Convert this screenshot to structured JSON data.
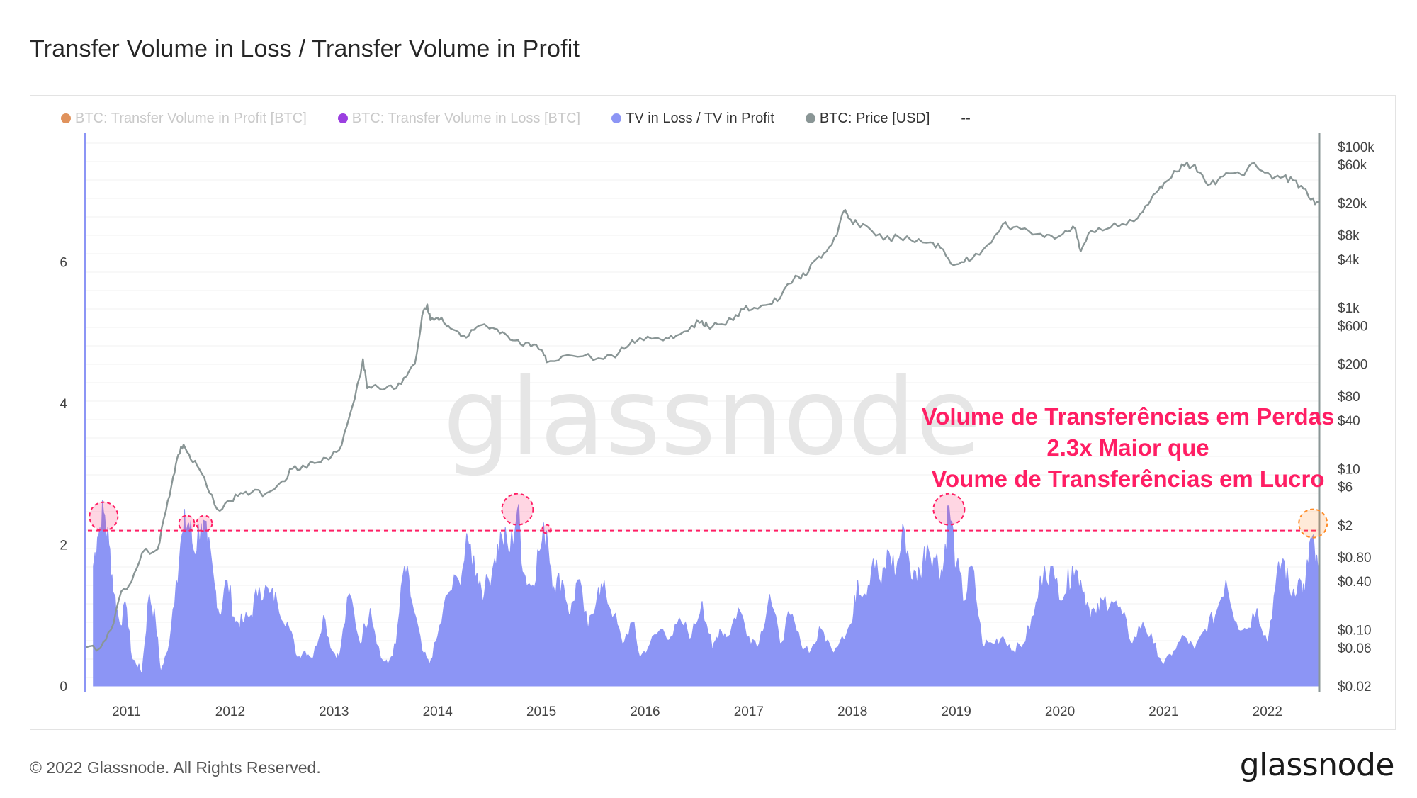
{
  "page_title": "Transfer Volume in Loss / Transfer Volume in Profit",
  "legend": [
    {
      "label": "BTC: Transfer Volume in Profit [BTC]",
      "color": "#e0925c",
      "muted": true
    },
    {
      "label": "BTC: Transfer Volume in Loss [BTC]",
      "color": "#9b3fe0",
      "muted": true
    },
    {
      "label": "TV in Loss / TV in Profit",
      "color": "#8c95f5",
      "muted": false
    },
    {
      "label": "BTC: Price [USD]",
      "color": "#8a9696",
      "muted": false
    },
    {
      "label": "--",
      "color": "",
      "muted": false
    }
  ],
  "watermark": "glassnode",
  "annotation": {
    "lines": [
      "Volume de Transferências em Perdas",
      "2.3x Maior que",
      "Voume de Transferências em Lucro"
    ],
    "color": "#ff1e64"
  },
  "footer": {
    "copyright": "© 2022 Glassnode. All Rights Reserved.",
    "logo": "glassnode"
  },
  "colors": {
    "ratio_fill": "#8c95f5",
    "price_line": "#8a9696",
    "highlight": "#ff1e64",
    "highlight_last": "#ff8c28"
  },
  "chart_data": {
    "type": "area",
    "x_range": [
      2010.6,
      2022.5
    ],
    "x_ticks": [
      {
        "value": 2011,
        "label": "2011"
      },
      {
        "value": 2012,
        "label": "2012"
      },
      {
        "value": 2013,
        "label": "2013"
      },
      {
        "value": 2014,
        "label": "2014"
      },
      {
        "value": 2015,
        "label": "2015"
      },
      {
        "value": 2016,
        "label": "2016"
      },
      {
        "value": 2017,
        "label": "2017"
      },
      {
        "value": 2018,
        "label": "2018"
      },
      {
        "value": 2019,
        "label": "2019"
      },
      {
        "value": 2020,
        "label": "2020"
      },
      {
        "value": 2021,
        "label": "2021"
      },
      {
        "value": 2022,
        "label": "2022"
      }
    ],
    "y_left": {
      "range": [
        0,
        7.8
      ],
      "ticks": [
        {
          "value": 0,
          "label": "0"
        },
        {
          "value": 2,
          "label": "2"
        },
        {
          "value": 4,
          "label": "4"
        },
        {
          "value": 6,
          "label": "6"
        }
      ]
    },
    "y_right": {
      "scale": "log",
      "range": [
        0.02,
        100000
      ],
      "ticks": [
        {
          "value": 100000,
          "label": "$100k"
        },
        {
          "value": 60000,
          "label": "$60k"
        },
        {
          "value": 20000,
          "label": "$20k"
        },
        {
          "value": 8000,
          "label": "$8k"
        },
        {
          "value": 4000,
          "label": "$4k"
        },
        {
          "value": 1000,
          "label": "$1k"
        },
        {
          "value": 600,
          "label": "$600"
        },
        {
          "value": 200,
          "label": "$200"
        },
        {
          "value": 80,
          "label": "$80"
        },
        {
          "value": 40,
          "label": "$40"
        },
        {
          "value": 10,
          "label": "$10"
        },
        {
          "value": 6,
          "label": "$6"
        },
        {
          "value": 2,
          "label": "$2"
        },
        {
          "value": 0.8,
          "label": "$0.80"
        },
        {
          "value": 0.4,
          "label": "$0.40"
        },
        {
          "value": 0.1,
          "label": "$0.10"
        },
        {
          "value": 0.06,
          "label": "$0.06"
        },
        {
          "value": 0.02,
          "label": "$0.02"
        }
      ]
    },
    "threshold": 2.2,
    "highlighted_peaks": [
      {
        "x": 2010.78,
        "y": 2.4,
        "size": "medium"
      },
      {
        "x": 2011.58,
        "y": 2.3,
        "size": "small"
      },
      {
        "x": 2011.75,
        "y": 2.3,
        "size": "small"
      },
      {
        "x": 2014.77,
        "y": 2.5,
        "size": "large"
      },
      {
        "x": 2015.05,
        "y": 2.22,
        "size": "tiny"
      },
      {
        "x": 2018.93,
        "y": 2.5,
        "size": "large"
      },
      {
        "x": 2022.44,
        "y": 2.3,
        "size": "medium",
        "last": true
      }
    ],
    "series": [
      {
        "name": "TV in Loss / TV in Profit",
        "axis": "left",
        "x": [
          2010.68,
          2010.72,
          2010.78,
          2010.83,
          2010.88,
          2010.93,
          2011.0,
          2011.05,
          2011.1,
          2011.15,
          2011.22,
          2011.28,
          2011.33,
          2011.4,
          2011.48,
          2011.55,
          2011.6,
          2011.65,
          2011.72,
          2011.78,
          2011.85,
          2011.9,
          2011.97,
          2012.05,
          2012.12,
          2012.2,
          2012.28,
          2012.38,
          2012.45,
          2012.55,
          2012.65,
          2012.72,
          2012.8,
          2012.9,
          2012.98,
          2013.05,
          2013.15,
          2013.25,
          2013.35,
          2013.45,
          2013.52,
          2013.6,
          2013.68,
          2013.75,
          2013.85,
          2013.92,
          2014.0,
          2014.1,
          2014.2,
          2014.3,
          2014.38,
          2014.45,
          2014.55,
          2014.62,
          2014.7,
          2014.77,
          2014.83,
          2014.9,
          2014.98,
          2015.05,
          2015.12,
          2015.2,
          2015.28,
          2015.35,
          2015.45,
          2015.55,
          2015.62,
          2015.7,
          2015.78,
          2015.88,
          2015.95,
          2016.05,
          2016.15,
          2016.25,
          2016.35,
          2016.45,
          2016.55,
          2016.65,
          2016.72,
          2016.8,
          2016.9,
          2017.0,
          2017.1,
          2017.2,
          2017.3,
          2017.4,
          2017.5,
          2017.6,
          2017.7,
          2017.8,
          2017.9,
          2018.0,
          2018.05,
          2018.12,
          2018.2,
          2018.28,
          2018.35,
          2018.42,
          2018.5,
          2018.58,
          2018.65,
          2018.72,
          2018.8,
          2018.87,
          2018.93,
          2019.0,
          2019.08,
          2019.15,
          2019.25,
          2019.35,
          2019.45,
          2019.55,
          2019.65,
          2019.75,
          2019.85,
          2019.95,
          2020.05,
          2020.12,
          2020.2,
          2020.28,
          2020.35,
          2020.42,
          2020.5,
          2020.6,
          2020.7,
          2020.8,
          2020.9,
          2021.0,
          2021.1,
          2021.2,
          2021.3,
          2021.4,
          2021.5,
          2021.6,
          2021.7,
          2021.8,
          2021.9,
          2022.0,
          2022.08,
          2022.15,
          2022.22,
          2022.3,
          2022.36,
          2022.42,
          2022.46,
          2022.5
        ],
        "values": [
          1.7,
          2.1,
          2.45,
          2.0,
          1.3,
          0.9,
          1.1,
          0.4,
          0.3,
          0.2,
          1.3,
          0.9,
          0.2,
          0.5,
          1.5,
          2.2,
          2.3,
          1.9,
          2.3,
          2.0,
          1.4,
          1.0,
          1.5,
          0.9,
          0.9,
          1.0,
          1.4,
          1.3,
          1.2,
          0.9,
          0.4,
          0.5,
          0.4,
          1.0,
          0.5,
          0.4,
          1.3,
          0.6,
          1.1,
          0.4,
          0.3,
          0.6,
          1.7,
          1.2,
          0.5,
          0.3,
          0.7,
          1.3,
          1.5,
          2.0,
          1.6,
          1.3,
          1.8,
          2.1,
          1.9,
          2.5,
          1.6,
          1.4,
          1.9,
          2.2,
          1.4,
          1.5,
          1.0,
          1.5,
          0.8,
          1.4,
          1.3,
          1.0,
          0.6,
          0.9,
          0.4,
          0.6,
          0.8,
          0.7,
          0.9,
          0.7,
          1.2,
          0.5,
          0.8,
          0.7,
          1.1,
          0.7,
          0.6,
          1.3,
          0.6,
          1.0,
          0.6,
          0.5,
          0.8,
          0.5,
          0.7,
          0.9,
          1.5,
          1.3,
          1.8,
          1.4,
          1.9,
          1.6,
          2.2,
          1.5,
          1.6,
          2.0,
          1.8,
          1.6,
          2.55,
          1.7,
          1.2,
          1.7,
          0.6,
          0.6,
          0.7,
          0.5,
          0.6,
          1.0,
          1.7,
          1.5,
          1.3,
          1.7,
          1.5,
          1.1,
          1.0,
          1.2,
          1.2,
          1.0,
          0.6,
          0.9,
          0.6,
          0.3,
          0.5,
          0.7,
          0.5,
          0.8,
          1.0,
          1.5,
          0.9,
          0.8,
          1.1,
          0.6,
          1.4,
          1.8,
          1.3,
          1.5,
          1.3,
          2.1,
          1.8,
          1.5
        ]
      },
      {
        "name": "BTC: Price [USD]",
        "axis": "right",
        "x": [
          2010.6,
          2010.75,
          2010.85,
          2010.95,
          2011.05,
          2011.15,
          2011.3,
          2011.38,
          2011.45,
          2011.5,
          2011.55,
          2011.62,
          2011.7,
          2011.8,
          2011.9,
          2012.0,
          2012.1,
          2012.2,
          2012.35,
          2012.5,
          2012.6,
          2012.7,
          2012.85,
          2012.95,
          2013.05,
          2013.15,
          2013.25,
          2013.28,
          2013.32,
          2013.4,
          2013.5,
          2013.6,
          2013.7,
          2013.78,
          2013.85,
          2013.9,
          2013.93,
          2014.0,
          2014.05,
          2014.1,
          2014.2,
          2014.3,
          2014.4,
          2014.5,
          2014.6,
          2014.7,
          2014.8,
          2014.9,
          2015.0,
          2015.05,
          2015.2,
          2015.4,
          2015.6,
          2015.75,
          2015.85,
          2015.95,
          2016.1,
          2016.2,
          2016.3,
          2016.45,
          2016.55,
          2016.6,
          2016.7,
          2016.85,
          2016.95,
          2017.05,
          2017.2,
          2017.3,
          2017.45,
          2017.55,
          2017.65,
          2017.75,
          2017.85,
          2017.92,
          2017.96,
          2018.05,
          2018.15,
          2018.3,
          2018.45,
          2018.6,
          2018.75,
          2018.85,
          2018.95,
          2019.05,
          2019.15,
          2019.3,
          2019.45,
          2019.55,
          2019.7,
          2019.85,
          2019.95,
          2020.05,
          2020.15,
          2020.2,
          2020.3,
          2020.45,
          2020.6,
          2020.75,
          2020.85,
          2020.95,
          2021.0,
          2021.1,
          2021.2,
          2021.3,
          2021.4,
          2021.5,
          2021.6,
          2021.75,
          2021.85,
          2021.95,
          2022.05,
          2022.15,
          2022.25,
          2022.35,
          2022.42,
          2022.5
        ],
        "values": [
          0.06,
          0.06,
          0.1,
          0.3,
          0.4,
          0.9,
          1.0,
          3.0,
          8.0,
          15,
          20,
          13,
          10,
          5,
          3,
          4,
          5,
          5,
          5,
          7,
          10,
          11,
          12,
          13,
          17,
          45,
          140,
          230,
          100,
          110,
          100,
          100,
          140,
          200,
          800,
          1100,
          700,
          750,
          700,
          600,
          500,
          450,
          600,
          550,
          480,
          400,
          350,
          330,
          300,
          210,
          250,
          250,
          230,
          280,
          350,
          420,
          420,
          420,
          450,
          600,
          680,
          600,
          620,
          700,
          950,
          1000,
          1100,
          1300,
          2500,
          2500,
          4000,
          5000,
          8000,
          16000,
          13000,
          11000,
          10000,
          7000,
          7500,
          6500,
          6500,
          5500,
          3500,
          3700,
          4000,
          6000,
          11000,
          10000,
          9000,
          7500,
          7200,
          9000,
          9500,
          5000,
          9000,
          9500,
          11000,
          13000,
          19000,
          29000,
          35000,
          50000,
          58000,
          60000,
          37000,
          34000,
          47000,
          45000,
          62000,
          50000,
          40000,
          42000,
          38000,
          30000,
          22000,
          20000
        ]
      }
    ]
  }
}
